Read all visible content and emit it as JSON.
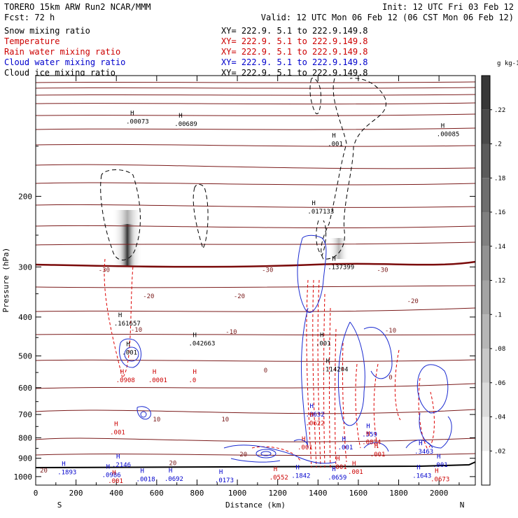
{
  "header": {
    "left1": "TORERO  15km ARW   Run2    NCAR/MMM",
    "right1": "Init: 12 UTC Fri 03 Feb 12",
    "left2": "Fcst:   72 h",
    "right2": "Valid: 12 UTC Mon 06 Feb 12 (06 CST Mon 06 Feb 12)"
  },
  "legend": [
    {
      "name": "Snow mixing ratio",
      "xy": "XY= 222.9.  5.1 to 222.9.149.8",
      "color": "#000000"
    },
    {
      "name": "Temperature",
      "xy": "XY= 222.9.  5.1 to 222.9.149.8",
      "color": "#cc0000"
    },
    {
      "name": "Rain water mixing ratio",
      "xy": "XY= 222.9.  5.1 to 222.9.149.8",
      "color": "#cc0000"
    },
    {
      "name": "Cloud water mixing ratio",
      "xy": "XY= 222.9.  5.1 to 222.9.149.8",
      "color": "#0000cc"
    },
    {
      "name": "Cloud ice mixing ratio",
      "xy": "XY= 222.9.  5.1 to 222.9.149.8",
      "color": "#000000"
    }
  ],
  "chart_data": {
    "type": "contour",
    "xlabel": "Distance (km)",
    "ylabel": "Pressure (hPa)",
    "xlim": [
      0,
      2180
    ],
    "ylim": [
      1050,
      100
    ],
    "x_ticks": [
      0,
      200,
      400,
      600,
      800,
      1000,
      1200,
      1400,
      1600,
      1800,
      2000
    ],
    "y_ticks": [
      200,
      300,
      400,
      500,
      600,
      700,
      800,
      900,
      1000
    ],
    "y_scale": "log",
    "x_end_labels": {
      "left": "S",
      "right": "N"
    },
    "colorbar": {
      "unit": "g kg-1",
      "ticks": [
        ".02",
        ".04",
        ".06",
        ".08",
        ".1",
        ".12",
        ".14",
        ".16",
        ".18",
        ".2",
        ".22"
      ]
    },
    "temperature_labels": [
      {
        "x": 340,
        "p": 305,
        "text": "-30"
      },
      {
        "x": 1150,
        "p": 305,
        "text": "-30"
      },
      {
        "x": 1720,
        "p": 305,
        "text": "-30"
      },
      {
        "x": 560,
        "p": 355,
        "text": "-20"
      },
      {
        "x": 1010,
        "p": 355,
        "text": "-20"
      },
      {
        "x": 1870,
        "p": 365,
        "text": "-20"
      },
      {
        "x": 500,
        "p": 430,
        "text": "-10"
      },
      {
        "x": 970,
        "p": 435,
        "text": "-10"
      },
      {
        "x": 1760,
        "p": 432,
        "text": "-10"
      },
      {
        "x": 1140,
        "p": 543,
        "text": "0"
      },
      {
        "x": 1760,
        "p": 565,
        "text": "0"
      },
      {
        "x": 600,
        "p": 720,
        "text": "10"
      },
      {
        "x": 940,
        "p": 720,
        "text": "10"
      },
      {
        "x": 1030,
        "p": 880,
        "text": "20"
      },
      {
        "x": 680,
        "p": 925,
        "text": "20"
      },
      {
        "x": 40,
        "p": 965,
        "text": "20"
      }
    ],
    "maxima_labels": [
      {
        "x": 490,
        "p": 130,
        "text": ".00073",
        "color": "#000000"
      },
      {
        "x": 730,
        "p": 132,
        "text": ".00689",
        "color": "#000000"
      },
      {
        "x": 2030,
        "p": 140,
        "text": ".00085",
        "color": "#000000"
      },
      {
        "x": 1490,
        "p": 148,
        "text": ".001",
        "color": "#000000"
      },
      {
        "x": 1390,
        "p": 218,
        "text": ".017133",
        "color": "#000000"
      },
      {
        "x": 1490,
        "p": 300,
        "text": ".137399",
        "color": "#000000"
      },
      {
        "x": 430,
        "p": 415,
        "text": ".161657",
        "color": "#000000"
      },
      {
        "x": 470,
        "p": 490,
        "text": ".001",
        "color": "#000000"
      },
      {
        "x": 800,
        "p": 465,
        "text": ".042663",
        "color": "#000000"
      },
      {
        "x": 1430,
        "p": 465,
        "text": ".001",
        "color": "#000000"
      },
      {
        "x": 1460,
        "p": 540,
        "text": ".114204",
        "color": "#000000"
      },
      {
        "x": 440,
        "p": 575,
        "text": ".0908",
        "color": "#cc0000"
      },
      {
        "x": 600,
        "p": 575,
        "text": ".0001",
        "color": "#cc0000"
      },
      {
        "x": 800,
        "p": 575,
        "text": ".0",
        "color": "#cc0000"
      },
      {
        "x": 1380,
        "p": 700,
        "text": ".0632",
        "color": "#0000cc"
      },
      {
        "x": 1380,
        "p": 735,
        "text": ".0622",
        "color": "#cc0000"
      },
      {
        "x": 410,
        "p": 775,
        "text": ".001",
        "color": "#cc0000"
      },
      {
        "x": 1660,
        "p": 785,
        "text": ".559",
        "color": "#0000cc"
      },
      {
        "x": 1660,
        "p": 820,
        "text": ".0824",
        "color": "#cc0000"
      },
      {
        "x": 1540,
        "p": 845,
        "text": ".001",
        "color": "#0000cc"
      },
      {
        "x": 1340,
        "p": 845,
        "text": ".001",
        "color": "#cc0000"
      },
      {
        "x": 1920,
        "p": 865,
        "text": ".3463",
        "color": "#0000cc"
      },
      {
        "x": 1700,
        "p": 880,
        "text": ".001",
        "color": "#cc0000"
      },
      {
        "x": 420,
        "p": 935,
        "text": ".2146",
        "color": "#0000cc"
      },
      {
        "x": 1510,
        "p": 945,
        "text": ".001",
        "color": "#cc0000"
      },
      {
        "x": 2010,
        "p": 935,
        "text": ".001",
        "color": "#0000cc"
      },
      {
        "x": 1590,
        "p": 973,
        "text": ".001",
        "color": "#cc0000"
      },
      {
        "x": 150,
        "p": 975,
        "text": ".1893",
        "color": "#0000cc"
      },
      {
        "x": 370,
        "p": 990,
        "text": ".0986",
        "color": "#0000cc"
      },
      {
        "x": 1310,
        "p": 995,
        "text": ".1842",
        "color": "#0000cc"
      },
      {
        "x": 1910,
        "p": 995,
        "text": ".1643",
        "color": "#0000cc"
      },
      {
        "x": 1490,
        "p": 1005,
        "text": ".0659",
        "color": "#0000cc"
      },
      {
        "x": 1200,
        "p": 1005,
        "text": ".0552",
        "color": "#cc0000"
      },
      {
        "x": 680,
        "p": 1012,
        "text": ".0692",
        "color": "#0000cc"
      },
      {
        "x": 540,
        "p": 1015,
        "text": ".0018",
        "color": "#0000cc"
      },
      {
        "x": 930,
        "p": 1020,
        "text": ".0173",
        "color": "#0000cc"
      },
      {
        "x": 2000,
        "p": 1015,
        "text": ".0673",
        "color": "#cc0000"
      },
      {
        "x": 400,
        "p": 1025,
        "text": ".001",
        "color": "#cc0000"
      }
    ]
  }
}
